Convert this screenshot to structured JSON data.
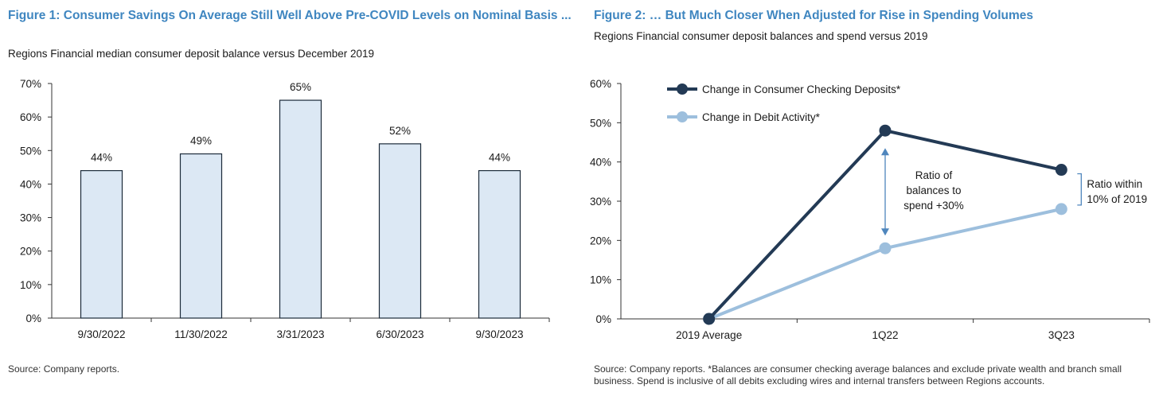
{
  "figure1": {
    "title": "Figure 1: Consumer Savings On Average Still Well Above Pre-COVID Levels on Nominal Basis ...",
    "subtitle": "Regions Financial median consumer deposit balance versus December 2019",
    "source": "Source: Company reports.",
    "colors": {
      "bar_fill": "#dce8f4",
      "bar_stroke": "#1c2b3a",
      "axis": "#333333"
    }
  },
  "figure2": {
    "title": "Figure 2: … But Much Closer When Adjusted for Rise in Spending Volumes",
    "subtitle": "Regions Financial consumer deposit balances and spend versus 2019",
    "source": "Source: Company reports. *Balances are consumer checking average balances and exclude private wealth and branch small business. Spend is inclusive of all debits excluding wires and internal transfers between Regions accounts.",
    "annotation_ratio": [
      "Ratio of",
      "balances to",
      "spend +30%"
    ],
    "annotation_within": [
      "Ratio within",
      "10% of 2019"
    ],
    "colors": {
      "dark": "#233a55",
      "light": "#9dbfdd",
      "arrow": "#4f86bd",
      "axis": "#333333"
    }
  },
  "chart_data": [
    {
      "type": "bar",
      "categories": [
        "9/30/2022",
        "11/30/2022",
        "3/31/2023",
        "6/30/2023",
        "9/30/2023"
      ],
      "values": [
        44,
        49,
        65,
        52,
        44
      ],
      "data_labels": [
        "44%",
        "49%",
        "65%",
        "52%",
        "44%"
      ],
      "ylim": [
        0,
        70
      ],
      "yticks": [
        "0%",
        "10%",
        "20%",
        "30%",
        "40%",
        "50%",
        "60%",
        "70%"
      ],
      "grid": false
    },
    {
      "type": "line",
      "categories": [
        "2019 Average",
        "1Q22",
        "3Q23"
      ],
      "series": [
        {
          "name": "Change in Consumer Checking Deposits*",
          "values": [
            0,
            48,
            38
          ],
          "color": "#233a55"
        },
        {
          "name": "Change in Debit Activity*",
          "values": [
            0,
            18,
            28
          ],
          "color": "#9dbfdd"
        }
      ],
      "ylim": [
        0,
        60
      ],
      "yticks": [
        "0%",
        "10%",
        "20%",
        "30%",
        "40%",
        "50%",
        "60%"
      ],
      "legend": "top-left",
      "grid": false
    }
  ]
}
